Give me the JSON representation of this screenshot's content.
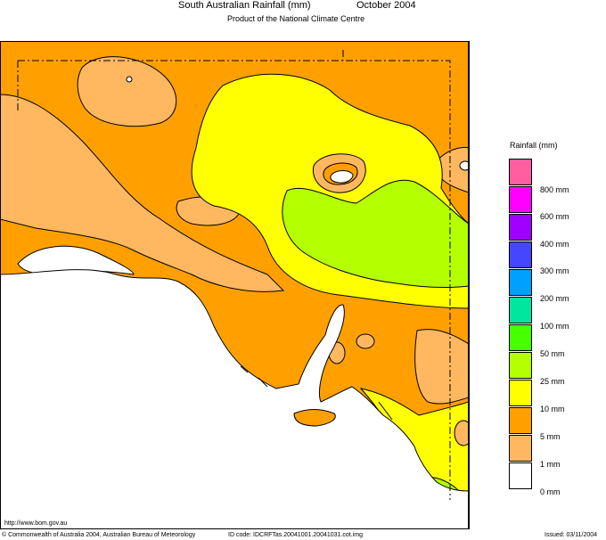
{
  "header": {
    "title": "South Australian Rainfall (mm)",
    "period": "October 2004",
    "subtitle": "Product of the National Climate Centre"
  },
  "legend": {
    "title": "Rainfall (mm)",
    "bands": [
      {
        "color": "#ff5fa0"
      },
      {
        "color": "#ff00ff"
      },
      {
        "color": "#a000ff"
      },
      {
        "color": "#4646ff"
      },
      {
        "color": "#00a0ff"
      },
      {
        "color": "#00e6a0"
      },
      {
        "color": "#46ff00"
      },
      {
        "color": "#b4ff00"
      },
      {
        "color": "#ffff00"
      },
      {
        "color": "#ffa000"
      },
      {
        "color": "#ffb860"
      },
      {
        "color": "#ffffff"
      }
    ],
    "labels": [
      "800 mm",
      "600 mm",
      "400 mm",
      "300 mm",
      "200 mm",
      "100 mm",
      "50 mm",
      "25 mm",
      "10 mm",
      "5 mm",
      "1 mm",
      "0 mm"
    ]
  },
  "footer": {
    "url": "http://www.bom.gov.au",
    "copyright": "© Commonwealth of Australia 2004, Australian Bureau of Meteorology",
    "id_code": "ID code: IDCRFTas.20041001.20041031.cot.img",
    "issued": "Issued: 03/11/2004"
  }
}
